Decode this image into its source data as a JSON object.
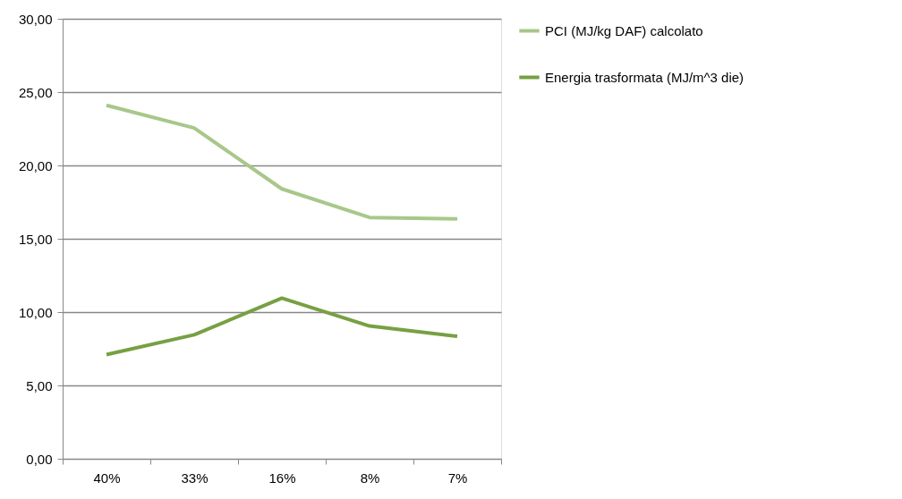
{
  "chart_data": {
    "type": "line",
    "categories": [
      "40%",
      "33%",
      "16%",
      "8%",
      "7%"
    ],
    "series": [
      {
        "name": "PCI (MJ/kg DAF) calcolato",
        "color": "#a8c78a",
        "values": [
          24.1,
          22.55,
          18.4,
          16.45,
          16.35
        ]
      },
      {
        "name": "Energia trasformata (MJ/m^3 die)",
        "color": "#77a043",
        "values": [
          7.1,
          8.45,
          10.95,
          9.05,
          8.35
        ]
      }
    ],
    "ylim": [
      0,
      30
    ],
    "yticks": [
      {
        "value": 0,
        "label": "0,00"
      },
      {
        "value": 5,
        "label": "5,00"
      },
      {
        "value": 10,
        "label": "10,00"
      },
      {
        "value": 15,
        "label": "15,00"
      },
      {
        "value": 20,
        "label": "20,00"
      },
      {
        "value": 25,
        "label": "25,00"
      },
      {
        "value": 30,
        "label": "30,00"
      }
    ],
    "grid": "y",
    "legend": "right",
    "marker": "none",
    "line_style": "solid"
  }
}
